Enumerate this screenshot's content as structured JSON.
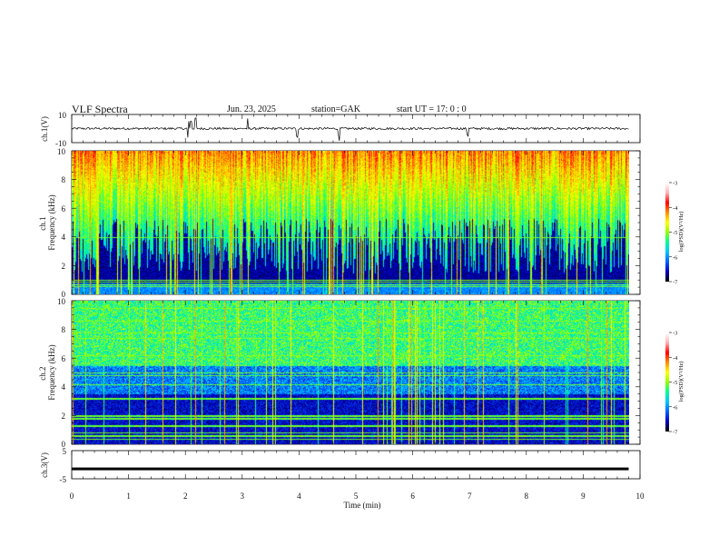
{
  "header": {
    "title": "VLF  Spectra",
    "date": "Jun. 23, 2025",
    "station": "station=GAK",
    "start": "start  UT  =    17: 0   : 0"
  },
  "colors": {
    "background": "#ffffff",
    "axis": "#000000",
    "trace": "#000000",
    "spectrogram_low": "#000018",
    "colormap": [
      "#000000",
      "#0000c8",
      "#0064ff",
      "#00c8ff",
      "#00ff96",
      "#96ff00",
      "#ffff00",
      "#ff8c00",
      "#ff0000",
      "#ffb4b4",
      "#ffffff"
    ]
  },
  "chart_data": [
    {
      "type": "line",
      "name": "ch1-waveform",
      "ylabel": "ch.1(V)",
      "ylim": [
        -10,
        10
      ],
      "yticks": [
        "10",
        "-10"
      ],
      "x_range": [
        0,
        9.8
      ],
      "baseline": 0,
      "spikes_x": [
        2.05,
        2.1,
        2.18,
        3.1,
        3.97,
        4.7,
        6.97
      ]
    },
    {
      "type": "heatmap",
      "name": "ch1-spectrogram",
      "ylabel": "ch.1\nFrequency  (kHz)",
      "ylim": [
        0,
        10
      ],
      "yticks": [
        "0",
        "2",
        "4",
        "6",
        "8",
        "10"
      ],
      "x_range": [
        0,
        9.8
      ],
      "colorbar": {
        "label": "log(PSD)(V²/Hz)",
        "ticks": [
          "-3",
          "-4",
          "-5",
          "-6",
          "-7"
        ],
        "range": [
          -7,
          -3
        ]
      }
    },
    {
      "type": "heatmap",
      "name": "ch2-spectrogram",
      "ylabel": "ch.2\nFrequency  (kHz)",
      "ylim": [
        0,
        10
      ],
      "yticks": [
        "0",
        "2",
        "4",
        "6",
        "8",
        "10"
      ],
      "x_range": [
        0,
        9.8
      ],
      "colorbar": {
        "label": "log(PSD)(V²/Hz)",
        "ticks": [
          "-3",
          "-4",
          "-5",
          "-6",
          "-7"
        ],
        "range": [
          -7,
          -3
        ]
      }
    },
    {
      "type": "line",
      "name": "ch3-waveform",
      "ylabel": "ch.3(V)",
      "ylim": [
        -5,
        5
      ],
      "yticks": [
        "5",
        "-5"
      ],
      "x_range": [
        0,
        9.8
      ],
      "baseline": -1.5
    }
  ],
  "xaxis": {
    "label": "Time  (min)",
    "range": [
      0,
      10
    ],
    "ticks": [
      "0",
      "1",
      "2",
      "3",
      "4",
      "5",
      "6",
      "7",
      "8",
      "9",
      "10"
    ]
  }
}
